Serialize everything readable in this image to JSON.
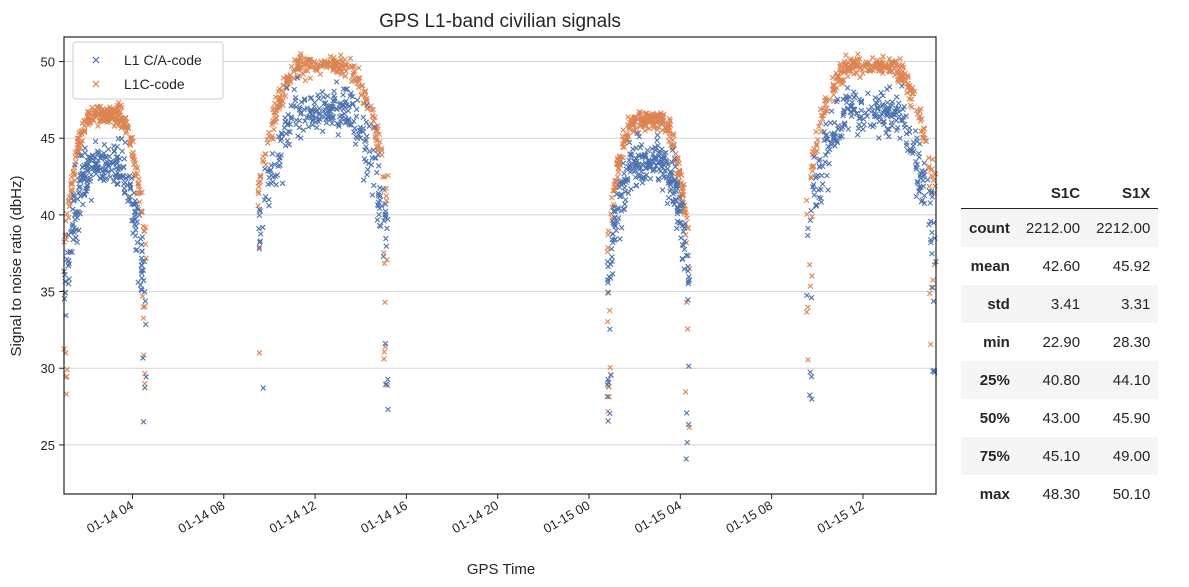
{
  "chart_data": {
    "type": "scatter",
    "title": "GPS L1-band civilian signals",
    "xlabel": "GPS Time",
    "ylabel": "Signal to noise ratio (dbHz)",
    "x_ticks_hours": [
      4,
      8,
      12,
      16,
      20,
      24,
      28,
      32,
      36
    ],
    "x_tick_labels": [
      "01-14 04",
      "01-14 08",
      "01-14 12",
      "01-14 16",
      "01-14 20",
      "01-15 00",
      "01-15 04",
      "01-15 08",
      "01-15 12"
    ],
    "xlim_hours": [
      1.0,
      39.2
    ],
    "y_ticks": [
      25,
      30,
      35,
      40,
      45,
      50
    ],
    "ylim": [
      21.8,
      51.6
    ],
    "grid": "horizontal",
    "legend_position": "upper-left",
    "passes": [
      {
        "start": 1.0,
        "end": 4.6,
        "peak_c": 43.2,
        "peak_x": 46.5,
        "tail_down": 4.3
      },
      {
        "start": 9.5,
        "end": 15.2,
        "peak_c": 46.8,
        "peak_x": 49.8,
        "tail_down": 4.3
      },
      {
        "start": 24.8,
        "end": 28.4,
        "peak_c": 43.5,
        "peak_x": 46.2,
        "tail_down": 4.4
      },
      {
        "start": 33.5,
        "end": 39.2,
        "peak_c": 46.6,
        "peak_x": 49.7,
        "tail_down": 4.3
      }
    ],
    "series": [
      {
        "name": "L1 C/A-code",
        "color": "#4c72b0",
        "marker": "x",
        "column": "S1C"
      },
      {
        "name": "L1C-code",
        "color": "#dd8452",
        "marker": "x",
        "column": "S1X"
      }
    ]
  },
  "stats_table": {
    "columns": [
      "S1C",
      "S1X"
    ],
    "rows": [
      {
        "label": "count",
        "s1c": "2212.00",
        "s1x": "2212.00"
      },
      {
        "label": "mean",
        "s1c": "42.60",
        "s1x": "45.92"
      },
      {
        "label": "std",
        "s1c": "3.41",
        "s1x": "3.31"
      },
      {
        "label": "min",
        "s1c": "22.90",
        "s1x": "28.30"
      },
      {
        "label": "25%",
        "s1c": "40.80",
        "s1x": "44.10"
      },
      {
        "label": "50%",
        "s1c": "43.00",
        "s1x": "45.90"
      },
      {
        "label": "75%",
        "s1c": "45.10",
        "s1x": "49.00"
      },
      {
        "label": "max",
        "s1c": "48.30",
        "s1x": "50.10"
      }
    ]
  }
}
